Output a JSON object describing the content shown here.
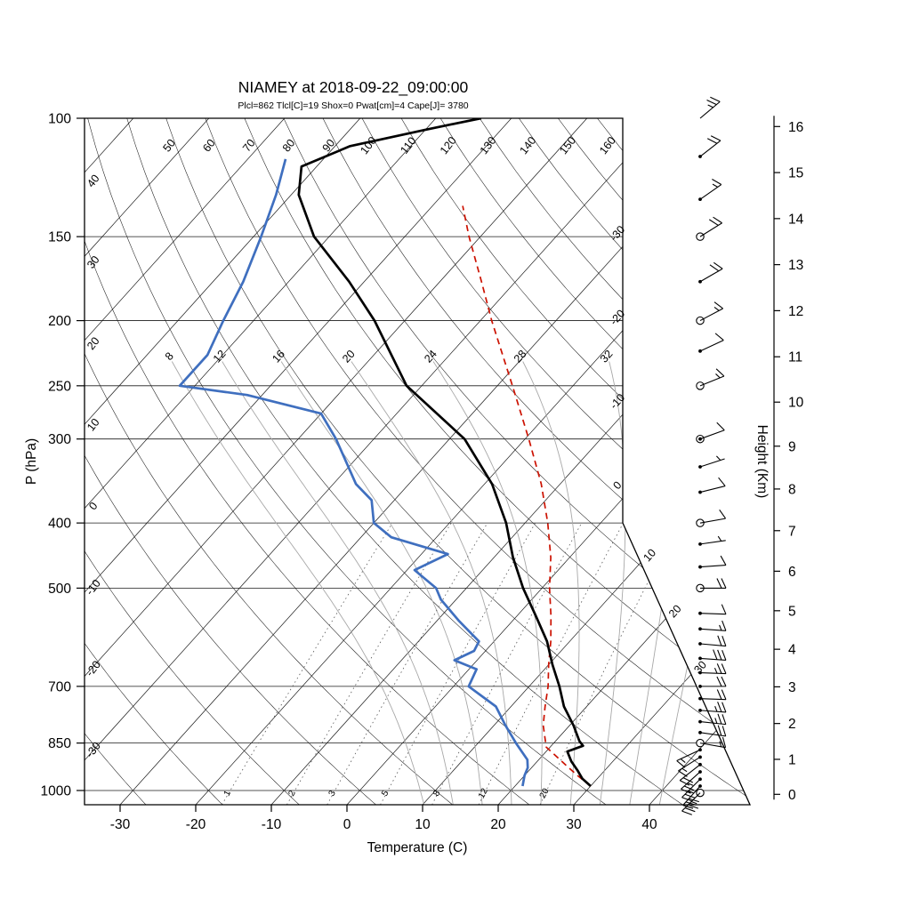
{
  "title": "NIAMEY at 2018-09-22_09:00:00",
  "subtitle": "Plcl=862 Tlcl[C]=19 Shox=0 Pwat[cm]=4 Cape[J]= 3780",
  "colors": {
    "temperature": "#000000",
    "dewpoint": "#3f6fbf",
    "parcel": "#cc1100",
    "subtitle": "#c85000",
    "moist_adiabat": "#a8a8a8",
    "mixing_ratio": "#555555",
    "background_line": "#1a1a1a"
  },
  "chart_data": {
    "type": "line",
    "subtype": "skewT-logP-sounding",
    "station": "NIAMEY",
    "datetime": "2018-09-22_09:00:00",
    "indices": {
      "plcl_hpa": 862,
      "tlcl_c": 19,
      "shox": 0,
      "pwat_cm": 4,
      "cape_j": 3780
    },
    "x_axis": {
      "label": "Temperature (C)",
      "ticks": [
        -30,
        -20,
        -10,
        0,
        10,
        20,
        30,
        40
      ]
    },
    "y_axis": {
      "label": "P (hPa)",
      "scale": "log",
      "ticks": [
        100,
        150,
        200,
        250,
        300,
        400,
        500,
        700,
        850,
        1000
      ]
    },
    "height_axis": {
      "label": "Height (Km)",
      "units": "km",
      "ticks": [
        0,
        1,
        2,
        3,
        4,
        5,
        6,
        7,
        8,
        9,
        10,
        11,
        12,
        13,
        14,
        15,
        16
      ]
    },
    "background": {
      "isotherm_range": [
        -110,
        40
      ],
      "isotherm_step": 10,
      "isotherm_right_labels": [
        -30,
        -20,
        -10,
        0
      ],
      "isotherm_diagonal_labels": [
        10,
        20,
        30
      ],
      "dry_adiabat_range": [
        -40,
        170
      ],
      "dry_adiabat_top_labels": [
        50,
        60,
        70,
        80,
        90,
        100,
        110,
        120,
        130,
        140,
        150,
        160
      ],
      "dry_adiabat_left_labels": [
        40,
        30,
        20,
        10,
        0,
        -10,
        -20,
        -30
      ],
      "moist_adiabats": [
        8,
        12,
        16,
        20,
        24,
        28,
        32,
        36,
        40
      ],
      "moist_adiabat_labels": [
        8,
        12,
        16,
        20,
        24,
        28,
        32
      ],
      "mixing_ratios": [
        1,
        2,
        3,
        5,
        8,
        12,
        20
      ]
    },
    "series": [
      {
        "name": "temperature",
        "color": "#000000",
        "style": "solid",
        "points": [
          [
            985,
            30
          ],
          [
            960,
            28
          ],
          [
            935,
            26.5
          ],
          [
            905,
            24.5
          ],
          [
            875,
            22.8
          ],
          [
            858,
            24.2
          ],
          [
            845,
            23.2
          ],
          [
            800,
            20.5
          ],
          [
            750,
            17
          ],
          [
            700,
            14
          ],
          [
            650,
            10.5
          ],
          [
            600,
            7
          ],
          [
            550,
            2.5
          ],
          [
            500,
            -2.5
          ],
          [
            450,
            -7.5
          ],
          [
            400,
            -12.5
          ],
          [
            350,
            -19
          ],
          [
            300,
            -28
          ],
          [
            250,
            -42
          ],
          [
            200,
            -54
          ],
          [
            175,
            -62
          ],
          [
            150,
            -72
          ],
          [
            130,
            -79
          ],
          [
            118,
            -82
          ],
          [
            110,
            -78
          ],
          [
            104,
            -70
          ],
          [
            100,
            -64
          ]
        ]
      },
      {
        "name": "dewpoint",
        "color": "#3f6fbf",
        "style": "solid",
        "points": [
          [
            985,
            21
          ],
          [
            950,
            20
          ],
          [
            925,
            19.5
          ],
          [
            900,
            18.5
          ],
          [
            850,
            15
          ],
          [
            800,
            11.5
          ],
          [
            750,
            8
          ],
          [
            700,
            2
          ],
          [
            660,
            1
          ],
          [
            640,
            -3
          ],
          [
            620,
            -1.5
          ],
          [
            600,
            -2
          ],
          [
            560,
            -7
          ],
          [
            520,
            -12
          ],
          [
            500,
            -14
          ],
          [
            470,
            -19
          ],
          [
            445,
            -16.5
          ],
          [
            420,
            -26
          ],
          [
            400,
            -30
          ],
          [
            370,
            -33
          ],
          [
            350,
            -37
          ],
          [
            300,
            -45
          ],
          [
            275,
            -50
          ],
          [
            258,
            -62
          ],
          [
            250,
            -72
          ],
          [
            225,
            -72
          ],
          [
            200,
            -74
          ],
          [
            175,
            -76
          ],
          [
            150,
            -79
          ],
          [
            130,
            -82
          ],
          [
            115,
            -85
          ]
        ]
      },
      {
        "name": "parcel",
        "color": "#cc1100",
        "style": "dashed",
        "points": [
          [
            985,
            30
          ],
          [
            950,
            27
          ],
          [
            920,
            24.5
          ],
          [
            862,
            19.5
          ],
          [
            800,
            16.5
          ],
          [
            750,
            14.5
          ],
          [
            700,
            12.5
          ],
          [
            650,
            10
          ],
          [
            600,
            7.5
          ],
          [
            550,
            4.5
          ],
          [
            500,
            1
          ],
          [
            450,
            -2.5
          ],
          [
            400,
            -7
          ],
          [
            350,
            -12.5
          ],
          [
            300,
            -19.5
          ],
          [
            250,
            -28
          ],
          [
            200,
            -38.5
          ],
          [
            175,
            -44.5
          ],
          [
            150,
            -51.5
          ],
          [
            135,
            -56
          ]
        ]
      }
    ],
    "winds": [
      {
        "p": 1008,
        "kt": 35,
        "dir": 225,
        "mark": "circle"
      },
      {
        "p": 985,
        "kt": 30,
        "dir": 222,
        "mark": "dot"
      },
      {
        "p": 962,
        "kt": 25,
        "dir": 225,
        "mark": "dot"
      },
      {
        "p": 938,
        "kt": 25,
        "dir": 228,
        "mark": "dot"
      },
      {
        "p": 915,
        "kt": 20,
        "dir": 232,
        "mark": "dot"
      },
      {
        "p": 892,
        "kt": 15,
        "dir": 238,
        "mark": "dot"
      },
      {
        "p": 870,
        "kt": 15,
        "dir": 245,
        "mark": "dot"
      },
      {
        "p": 850,
        "kt": 15,
        "dir": 100,
        "mark": "circle"
      },
      {
        "p": 820,
        "kt": 20,
        "dir": 98,
        "mark": "dot"
      },
      {
        "p": 790,
        "kt": 25,
        "dir": 96,
        "mark": "dot"
      },
      {
        "p": 760,
        "kt": 25,
        "dir": 94,
        "mark": "dot"
      },
      {
        "p": 730,
        "kt": 20,
        "dir": 92,
        "mark": "dot"
      },
      {
        "p": 700,
        "kt": 20,
        "dir": 90,
        "mark": "dot"
      },
      {
        "p": 668,
        "kt": 25,
        "dir": 92,
        "mark": "dot"
      },
      {
        "p": 636,
        "kt": 30,
        "dir": 94,
        "mark": "dot"
      },
      {
        "p": 605,
        "kt": 20,
        "dir": 95,
        "mark": "dot"
      },
      {
        "p": 575,
        "kt": 15,
        "dir": 94,
        "mark": "dot"
      },
      {
        "p": 545,
        "kt": 10,
        "dir": 92,
        "mark": "dot"
      },
      {
        "p": 500,
        "kt": 20,
        "dir": 90,
        "mark": "circle"
      },
      {
        "p": 465,
        "kt": 10,
        "dir": 86,
        "mark": "dot"
      },
      {
        "p": 430,
        "kt": 5,
        "dir": 82,
        "mark": "dot"
      },
      {
        "p": 400,
        "kt": 10,
        "dir": 80,
        "mark": "circle"
      },
      {
        "p": 360,
        "kt": 10,
        "dir": 76,
        "mark": "dot"
      },
      {
        "p": 330,
        "kt": 5,
        "dir": 72,
        "mark": "dot"
      },
      {
        "p": 300,
        "kt": 10,
        "dir": 70,
        "mark": "circledot"
      },
      {
        "p": 250,
        "kt": 15,
        "dir": 68,
        "mark": "circle"
      },
      {
        "p": 222,
        "kt": 10,
        "dir": 65,
        "mark": "dot"
      },
      {
        "p": 200,
        "kt": 15,
        "dir": 62,
        "mark": "circle"
      },
      {
        "p": 175,
        "kt": 20,
        "dir": 60,
        "mark": "dot"
      },
      {
        "p": 150,
        "kt": 20,
        "dir": 58,
        "mark": "circle"
      },
      {
        "p": 132,
        "kt": 15,
        "dir": 55,
        "mark": "dot"
      },
      {
        "p": 114,
        "kt": 20,
        "dir": 52,
        "mark": "dot"
      },
      {
        "p": 100,
        "kt": 25,
        "dir": 50,
        "mark": "none"
      }
    ]
  }
}
